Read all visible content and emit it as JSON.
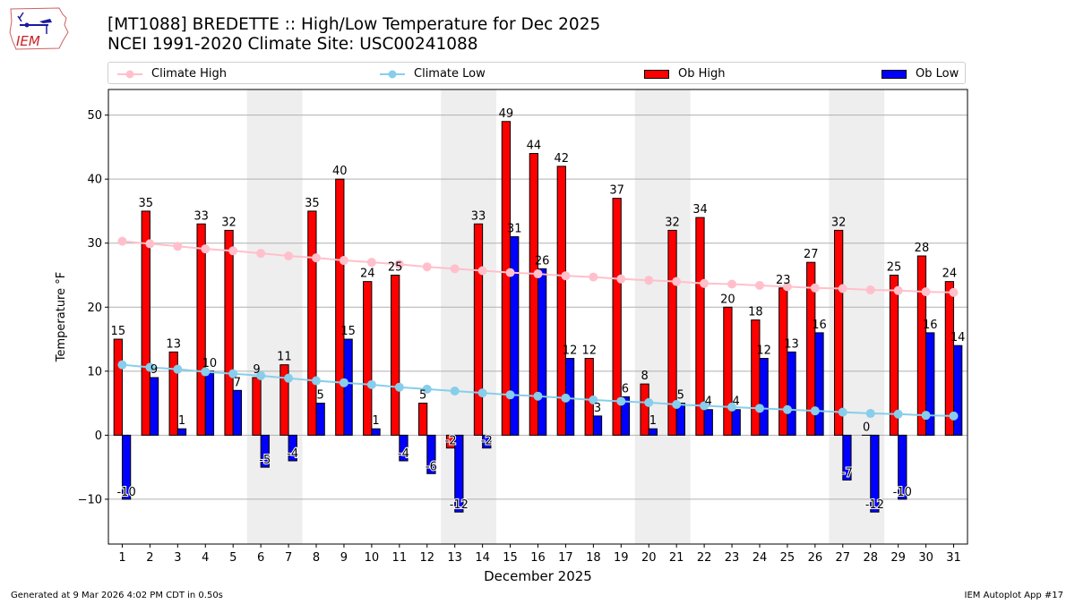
{
  "header": {
    "title_line1": "[MT1088] BREDETTE :: High/Low Temperature for Dec 2025",
    "title_line2": "NCEI 1991-2020 Climate Site: USC00241088",
    "logo_text": "IEM"
  },
  "footer": {
    "generated": "Generated at 9 Mar 2026 4:02 PM CDT in 0.50s",
    "app": "IEM Autoplot App #17"
  },
  "colors": {
    "ob_high": "#ff0000",
    "ob_low": "#0000ff",
    "climate_high": "#ffc0cb",
    "climate_low": "#87ceeb",
    "weekend_shade": "#eeeeee",
    "grid": "#b0b0b0"
  },
  "chart_data": {
    "type": "bar",
    "title": "[MT1088] BREDETTE :: High/Low Temperature for Dec 2025",
    "subtitle": "NCEI 1991-2020 Climate Site: USC00241088",
    "xlabel": "December 2025",
    "ylabel": "Temperature °F",
    "xlim": [
      0.5,
      31.5
    ],
    "ylim": [
      -17,
      54
    ],
    "yticks": [
      -10,
      0,
      10,
      20,
      30,
      40,
      50
    ],
    "ytick_labels": [
      "−10",
      "0",
      "10",
      "20",
      "30",
      "40",
      "50"
    ],
    "grid": true,
    "legend_placement": "top",
    "legend": [
      "Climate High",
      "Climate Low",
      "Ob High",
      "Ob Low"
    ],
    "categories": [
      "1",
      "2",
      "3",
      "4",
      "5",
      "6",
      "7",
      "8",
      "9",
      "10",
      "11",
      "12",
      "13",
      "14",
      "15",
      "16",
      "17",
      "18",
      "19",
      "20",
      "21",
      "22",
      "23",
      "24",
      "25",
      "26",
      "27",
      "28",
      "29",
      "30",
      "31"
    ],
    "shaded_weekends": [
      [
        6,
        7
      ],
      [
        13,
        14
      ],
      [
        20,
        21
      ],
      [
        27,
        28
      ]
    ],
    "series": [
      {
        "name": "Ob High",
        "type": "bar",
        "values": [
          15,
          35,
          13,
          33,
          32,
          9,
          11,
          35,
          40,
          24,
          25,
          5,
          -2,
          33,
          49,
          44,
          42,
          12,
          37,
          8,
          32,
          34,
          20,
          18,
          23,
          27,
          32,
          0,
          25,
          28,
          24
        ]
      },
      {
        "name": "Ob Low",
        "type": "bar",
        "values": [
          -10,
          9,
          1,
          10,
          7,
          -5,
          -4,
          5,
          15,
          1,
          -4,
          -6,
          -12,
          -2,
          31,
          26,
          12,
          3,
          6,
          1,
          5,
          4,
          4,
          12,
          13,
          16,
          -7,
          -12,
          -10,
          16,
          14
        ]
      },
      {
        "name": "Climate High",
        "type": "line",
        "values": [
          30.3,
          29.9,
          29.5,
          29.1,
          28.8,
          28.4,
          28.0,
          27.7,
          27.3,
          27.0,
          26.7,
          26.3,
          26.0,
          25.7,
          25.4,
          25.2,
          24.9,
          24.7,
          24.4,
          24.2,
          24.0,
          23.7,
          23.6,
          23.4,
          23.2,
          23.0,
          22.9,
          22.7,
          22.6,
          22.4,
          22.3
        ]
      },
      {
        "name": "Climate Low",
        "type": "line",
        "values": [
          11.0,
          10.6,
          10.3,
          9.9,
          9.6,
          9.3,
          8.9,
          8.5,
          8.2,
          7.9,
          7.5,
          7.2,
          6.9,
          6.6,
          6.3,
          6.1,
          5.8,
          5.5,
          5.3,
          5.1,
          4.8,
          4.6,
          4.4,
          4.2,
          4.0,
          3.8,
          3.6,
          3.4,
          3.3,
          3.1,
          3.0
        ]
      }
    ]
  }
}
